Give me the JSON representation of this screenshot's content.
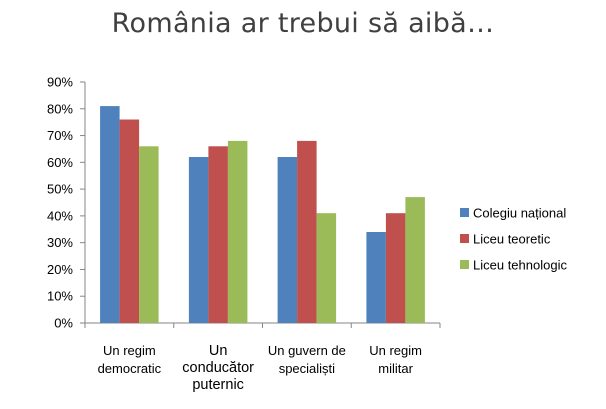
{
  "chart_data": {
    "type": "bar",
    "title": "România ar trebui să aibă…",
    "categories": [
      [
        "Un regim",
        "democratic"
      ],
      [
        "Un",
        "conducător",
        "puternic"
      ],
      [
        "Un guvern de",
        "specialiști"
      ],
      [
        "Un regim",
        "militar"
      ]
    ],
    "series": [
      {
        "name": "Colegiu național",
        "color": "#4F81BD",
        "values": [
          81,
          62,
          62,
          34
        ]
      },
      {
        "name": "Liceu teoretic",
        "color": "#C0504D",
        "values": [
          76,
          66,
          68,
          41
        ]
      },
      {
        "name": "Liceu tehnologic",
        "color": "#9BBB59",
        "values": [
          66,
          68,
          41,
          47
        ]
      }
    ],
    "yticks": [
      "0%",
      "10%",
      "20%",
      "30%",
      "40%",
      "50%",
      "60%",
      "70%",
      "80%",
      "90%"
    ],
    "ylim": [
      0,
      90
    ],
    "grid": false,
    "legend_position": "right"
  }
}
